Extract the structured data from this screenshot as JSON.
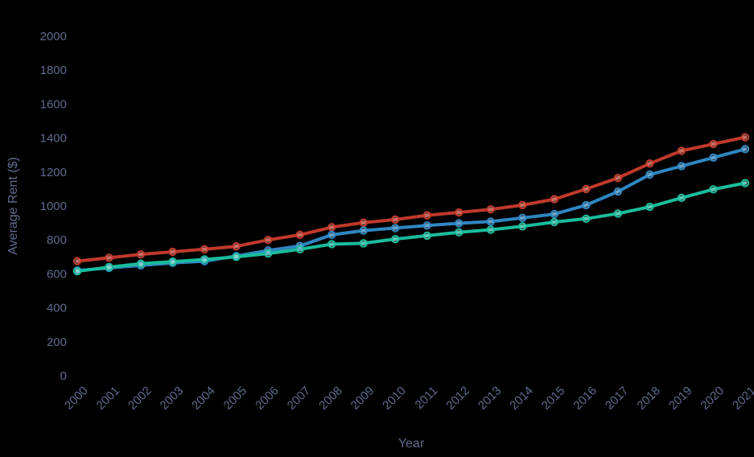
{
  "chart_data": {
    "type": "line",
    "xlabel": "Year",
    "ylabel": "Average Rent ($)",
    "ylim": [
      0,
      2000
    ],
    "y_ticks": [
      0,
      200,
      400,
      600,
      800,
      1000,
      1200,
      1400,
      1600,
      1800,
      2000
    ],
    "categories": [
      "2000",
      "2001",
      "2002",
      "2003",
      "2004",
      "2005",
      "2006",
      "2007",
      "2008",
      "2009",
      "2010",
      "2011",
      "2012",
      "2013",
      "2014",
      "2015",
      "2016",
      "2017",
      "2018",
      "2019",
      "2020",
      "2021"
    ],
    "grid": false,
    "legend": "none",
    "series": [
      {
        "color": "#c0392b",
        "values": [
          675,
          695,
          715,
          730,
          745,
          762,
          800,
          830,
          875,
          902,
          920,
          945,
          962,
          980,
          1005,
          1040,
          1100,
          1165,
          1250,
          1325,
          1365,
          1405
        ]
      },
      {
        "color": "#2e86c1",
        "values": [
          620,
          635,
          650,
          665,
          675,
          705,
          738,
          765,
          830,
          855,
          870,
          885,
          898,
          908,
          930,
          952,
          1005,
          1085,
          1185,
          1235,
          1285,
          1335
        ]
      },
      {
        "color": "#1abc9c",
        "values": [
          615,
          640,
          660,
          672,
          685,
          700,
          720,
          745,
          775,
          780,
          805,
          825,
          845,
          860,
          880,
          905,
          925,
          955,
          995,
          1048,
          1098,
          1135
        ]
      }
    ]
  }
}
